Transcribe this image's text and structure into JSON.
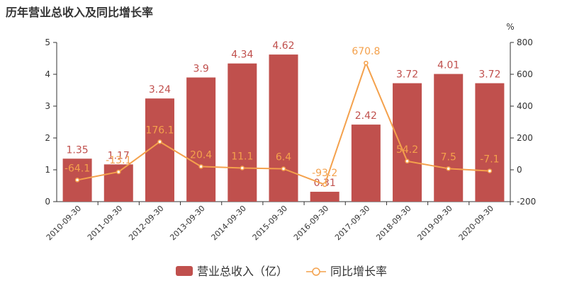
{
  "title": "历年营业总收入及同比增长率",
  "chart_data": {
    "type": "bar",
    "categories": [
      "2010-09-30",
      "2011-09-30",
      "2012-09-30",
      "2013-09-30",
      "2014-09-30",
      "2015-09-30",
      "2016-09-30",
      "2017-09-30",
      "2018-09-30",
      "2019-09-30",
      "2020-09-30"
    ],
    "series": [
      {
        "name": "营业总收入（亿）",
        "type": "bar",
        "axis": "left",
        "values": [
          1.35,
          1.17,
          3.24,
          3.9,
          4.34,
          4.62,
          0.31,
          2.42,
          3.72,
          4.01,
          3.72
        ],
        "labels": [
          "1.35",
          "1.17",
          "3.24",
          "3.9",
          "4.34",
          "4.62",
          "0.31",
          "2.42",
          "3.72",
          "4.01",
          "3.72"
        ]
      },
      {
        "name": "同比增长率",
        "type": "line",
        "axis": "right",
        "values": [
          -64.1,
          -13.1,
          176.1,
          20.4,
          11.1,
          6.4,
          -93.2,
          670.8,
          54.2,
          7.5,
          -7.1
        ],
        "labels": [
          "-64.1",
          "-13.1",
          "176.1",
          "20.4",
          "11.1",
          "6.4",
          "-93.2",
          "670.8",
          "54.2",
          "7.5",
          "-7.1"
        ]
      }
    ],
    "left_axis": {
      "min": 0,
      "max": 5,
      "ticks": [
        "0",
        "1",
        "2",
        "3",
        "4",
        "5"
      ]
    },
    "right_axis": {
      "min": -200,
      "max": 800,
      "ticks": [
        "-200",
        "0",
        "200",
        "400",
        "600",
        "800"
      ],
      "unit": "%"
    },
    "legend_position": "bottom-center",
    "colors": {
      "bar": "#c0504d",
      "line": "#f4a14c"
    }
  }
}
